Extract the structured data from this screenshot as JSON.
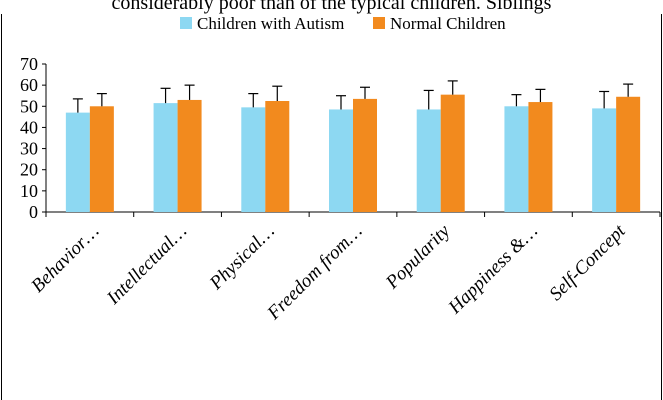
{
  "clipped_caption": "considerably poor than of the typical children. Siblings",
  "chart_data": {
    "type": "bar",
    "categories": [
      "Behavior…",
      "Intellectual…",
      "Physical…",
      "Freedom from…",
      "Popularity",
      "Happiness &…",
      "Self-Concept"
    ],
    "series": [
      {
        "name": "Children with Autism",
        "color": "#8dd8f2",
        "values": [
          47,
          51.5,
          49.5,
          48.5,
          48.5,
          50,
          49
        ],
        "errors": [
          6.5,
          7,
          6.5,
          6.5,
          9,
          5.5,
          8
        ]
      },
      {
        "name": "Normal Children",
        "color": "#f28a1e",
        "values": [
          50,
          53,
          52.5,
          53.5,
          55.5,
          52,
          54.5
        ],
        "errors": [
          6,
          7,
          7,
          5.5,
          6.5,
          6,
          6
        ]
      }
    ],
    "yticks": [
      "0",
      "10",
      "20",
      "30",
      "40",
      "50",
      "60",
      "70"
    ],
    "ylim": [
      0,
      70
    ],
    "legend_position": "top-center",
    "grid": false
  }
}
